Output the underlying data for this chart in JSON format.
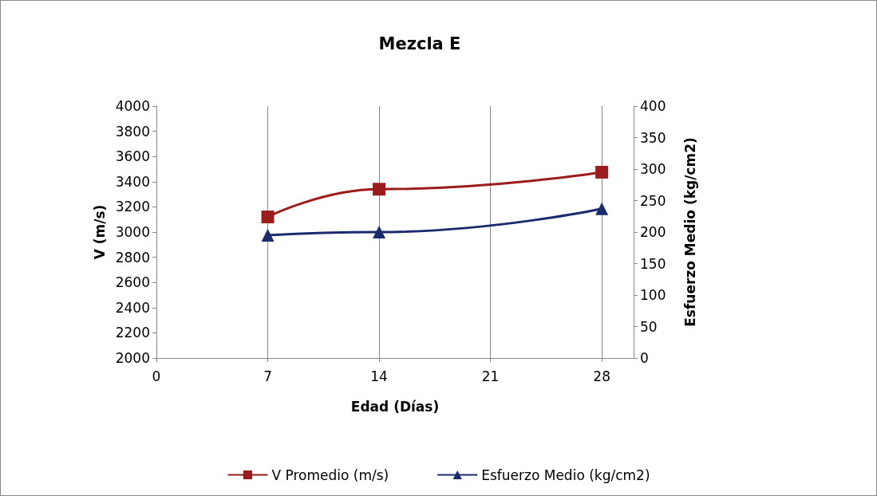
{
  "chart_data": {
    "type": "line",
    "title": "Mezcla E",
    "xlabel": "Edad (Días)",
    "ylabel": "V (m/s)",
    "y2label": "Esfuerzo Medio (kg/cm2)",
    "x": [
      7,
      14,
      28
    ],
    "series": [
      {
        "name": "V Promedio (m/s)",
        "color": "#9b1c1c",
        "values": [
          3120,
          3340,
          3475
        ],
        "marker": "square"
      },
      {
        "name": "Esfuerzo Medio (kg/cm2)",
        "color": "#1a2a6c",
        "values": [
          195,
          200,
          237
        ],
        "marker": "triangle",
        "axis": "y2"
      }
    ],
    "xlim": [
      0,
      30
    ],
    "xticks": [
      0,
      7,
      14,
      21,
      28
    ],
    "ylim": [
      2000,
      4000
    ],
    "yticks": [
      2000,
      2200,
      2400,
      2600,
      2800,
      3000,
      3200,
      3400,
      3600,
      3800,
      4000
    ],
    "y2lim": [
      0,
      400
    ],
    "y2ticks": [
      0,
      50,
      100,
      150,
      200,
      250,
      300,
      350,
      400
    ],
    "grid": "x",
    "legend": "bottom",
    "line_style": "solid"
  }
}
